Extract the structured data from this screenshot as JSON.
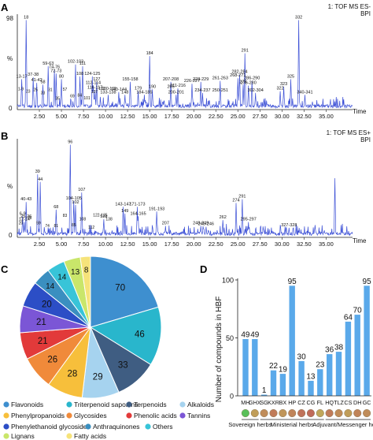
{
  "panel_letters": [
    "A",
    "B",
    "C",
    "D"
  ],
  "chart_data": [
    {
      "type": "line",
      "panel": "A",
      "label_right": [
        "1: TOF MS ES-",
        "BPI"
      ],
      "ylabel": "%",
      "xlabel": "Time",
      "yticks": [
        "0",
        "98"
      ],
      "xticks": [
        2.5,
        5.0,
        7.5,
        10.0,
        12.5,
        15.0,
        17.5,
        20.0,
        22.5,
        25.0,
        27.5,
        30.0,
        32.5,
        35.0
      ],
      "xlim": [
        0,
        38
      ],
      "ylim": [
        0,
        100
      ],
      "peaks": [
        {
          "t": 1.0,
          "h": 97,
          "label": "18"
        },
        {
          "t": 0.5,
          "h": 33,
          "label": "13-17"
        },
        {
          "t": 1.8,
          "h": 35,
          "label": "37-38"
        },
        {
          "t": 2.2,
          "h": 29,
          "label": "41-42"
        },
        {
          "t": 2.9,
          "h": 27,
          "label": "58"
        },
        {
          "t": 3.5,
          "h": 47,
          "label": "59-63"
        },
        {
          "t": 4.2,
          "h": 43,
          "label": "74-76"
        },
        {
          "t": 4.4,
          "h": 39,
          "label": "72-73"
        },
        {
          "t": 5.0,
          "h": 33,
          "label": "80"
        },
        {
          "t": 6.6,
          "h": 49,
          "label": "102-103"
        },
        {
          "t": 7.4,
          "h": 47,
          "label": "111"
        },
        {
          "t": 7.1,
          "h": 36,
          "label": "108"
        },
        {
          "t": 8.5,
          "h": 36,
          "label": "124-125"
        },
        {
          "t": 9.0,
          "h": 30,
          "label": "127"
        },
        {
          "t": 8.6,
          "h": 26,
          "label": "112-114"
        },
        {
          "t": 8.8,
          "h": 21,
          "label": "116-117"
        },
        {
          "t": 10.3,
          "h": 16,
          "label": "133-138"
        },
        {
          "t": 11.5,
          "h": 19,
          "label": "140-144"
        },
        {
          "t": 12.2,
          "h": 16,
          "label": "148"
        },
        {
          "t": 12.8,
          "h": 30,
          "label": "155-158"
        },
        {
          "t": 13.7,
          "h": 20,
          "label": "179"
        },
        {
          "t": 14.4,
          "h": 16,
          "label": "184-185"
        },
        {
          "t": 15.0,
          "h": 58,
          "label": "184"
        },
        {
          "t": 15.3,
          "h": 22,
          "label": "190"
        },
        {
          "t": 17.4,
          "h": 30,
          "label": "207-208"
        },
        {
          "t": 17.4,
          "h": 22,
          "label": "205"
        },
        {
          "t": 18.2,
          "h": 23,
          "label": "211-216"
        },
        {
          "t": 18.0,
          "h": 16,
          "label": "200-201"
        },
        {
          "t": 19.8,
          "h": 28,
          "label": "226-227"
        },
        {
          "t": 20.8,
          "h": 30,
          "label": "228-229"
        },
        {
          "t": 21.0,
          "h": 18,
          "label": "234-237"
        },
        {
          "t": 23.0,
          "h": 31,
          "label": "261-263"
        },
        {
          "t": 23.0,
          "h": 18,
          "label": "250-251"
        },
        {
          "t": 25.2,
          "h": 38,
          "label": "282-284"
        },
        {
          "t": 25.8,
          "h": 61,
          "label": "291"
        },
        {
          "t": 25.0,
          "h": 34,
          "label": "268-271"
        },
        {
          "t": 25.6,
          "h": 27,
          "label": "275"
        },
        {
          "t": 26.2,
          "h": 26,
          "label": "276-280"
        },
        {
          "t": 26.6,
          "h": 31,
          "label": "286-290"
        },
        {
          "t": 27.0,
          "h": 18,
          "label": "302-304"
        },
        {
          "t": 29.8,
          "h": 20,
          "label": "322"
        },
        {
          "t": 30.2,
          "h": 25,
          "label": "323"
        },
        {
          "t": 31.0,
          "h": 33,
          "label": "325"
        },
        {
          "t": 31.9,
          "h": 97,
          "label": "332"
        },
        {
          "t": 32.6,
          "h": 16,
          "label": "340-341"
        }
      ],
      "left_labels": [
        "1-9",
        "23",
        "25",
        "33",
        "31",
        "35",
        "57",
        "69",
        "84",
        "101",
        "107",
        "119",
        "130-132"
      ]
    },
    {
      "type": "line",
      "panel": "B",
      "label_right": [
        "1: TOF MS ES+",
        "BPI"
      ],
      "ylabel": "%",
      "xlabel": "Time",
      "yticks": [
        "0"
      ],
      "xticks": [
        2.5,
        5.0,
        7.5,
        10.0,
        12.5,
        15.0,
        17.5,
        20.0,
        22.5,
        25.0,
        27.5,
        30.0,
        32.5,
        35.0
      ],
      "xlim": [
        0,
        38
      ],
      "ylim": [
        0,
        100
      ],
      "peaks": [
        {
          "t": 2.3,
          "h": 66,
          "label": "39"
        },
        {
          "t": 2.6,
          "h": 58,
          "label": "44"
        },
        {
          "t": 1.0,
          "h": 37,
          "label": "40-43"
        },
        {
          "t": 0.6,
          "h": 22,
          "label": "6-9"
        },
        {
          "t": 1.0,
          "h": 19,
          "label": "25-26"
        },
        {
          "t": 0.8,
          "h": 16,
          "label": "12-14"
        },
        {
          "t": 4.4,
          "h": 29,
          "label": "68"
        },
        {
          "t": 6.0,
          "h": 97,
          "label": "96"
        },
        {
          "t": 6.4,
          "h": 38,
          "label": "104-105"
        },
        {
          "t": 6.6,
          "h": 34,
          "label": "102"
        },
        {
          "t": 7.3,
          "h": 47,
          "label": "107"
        },
        {
          "t": 9.8,
          "h": 19,
          "label": "128"
        },
        {
          "t": 12.0,
          "h": 32,
          "label": "143-147"
        },
        {
          "t": 12.2,
          "h": 25,
          "label": "149"
        },
        {
          "t": 13.6,
          "h": 32,
          "label": "171-173"
        },
        {
          "t": 13.7,
          "h": 22,
          "label": "164-165"
        },
        {
          "t": 15.8,
          "h": 27,
          "label": "191-193"
        },
        {
          "t": 16.8,
          "h": 12,
          "label": "207"
        },
        {
          "t": 20.8,
          "h": 12,
          "label": "248-249"
        },
        {
          "t": 21.4,
          "h": 11,
          "label": "245-246"
        },
        {
          "t": 23.3,
          "h": 18,
          "label": "262"
        },
        {
          "t": 24.8,
          "h": 36,
          "label": "274"
        },
        {
          "t": 25.5,
          "h": 40,
          "label": "291"
        },
        {
          "t": 26.2,
          "h": 16,
          "label": "295-297"
        },
        {
          "t": 30.8,
          "h": 10,
          "label": "327-328"
        },
        {
          "t": 36.0,
          "h": 62,
          "label": ""
        }
      ],
      "left_labels": [
        "20",
        "28",
        "59",
        "74",
        "81",
        "83",
        "85",
        "108",
        "112",
        "122-125",
        "138"
      ]
    },
    {
      "type": "pie",
      "panel": "C",
      "slices": [
        {
          "name": "Flavonoids",
          "value": 70,
          "color": "#3e8fcf"
        },
        {
          "name": "Triterpenoid saponins",
          "value": 46,
          "color": "#29b6cc"
        },
        {
          "name": "Terpenoids",
          "value": 33,
          "color": "#3f5d82"
        },
        {
          "name": "Alkaloids",
          "value": 29,
          "color": "#a6d3ef"
        },
        {
          "name": "Phenylpropanoids",
          "value": 28,
          "color": "#f7bf3b"
        },
        {
          "name": "Glycosides",
          "value": 26,
          "color": "#f08a3a"
        },
        {
          "name": "Phenolic acids",
          "value": 21,
          "color": "#e23a3a"
        },
        {
          "name": "Tannins",
          "value": 21,
          "color": "#7b56d6"
        },
        {
          "name": "Phenylethanoid glycosides",
          "value": 20,
          "color": "#2c4ec6"
        },
        {
          "name": "Anthraquinones",
          "value": 14,
          "color": "#3a8fc0"
        },
        {
          "name": "Others",
          "value": 14,
          "color": "#38c4d8"
        },
        {
          "name": "Lignans",
          "value": 13,
          "color": "#c9e66a"
        },
        {
          "name": "Fatty acids",
          "value": 8,
          "color": "#f6e37a"
        }
      ]
    },
    {
      "type": "bar",
      "panel": "D",
      "ylabel": "Number of compounds in HBF",
      "ylim": [
        0,
        100
      ],
      "yticks": [
        0,
        50,
        100
      ],
      "categories": [
        "MH",
        "GHX",
        "SG",
        "KXR",
        "BX",
        "HP",
        "CZ",
        "CG",
        "FL",
        "HQ",
        "TLZ",
        "CS",
        "DH",
        "GC"
      ],
      "values": [
        49,
        49,
        1,
        22,
        19,
        95,
        30,
        13,
        23,
        36,
        38,
        64,
        70,
        95
      ],
      "bar_color": "#5aa9ea",
      "groups": [
        {
          "label": "Sovereign herbs",
          "from": 0,
          "to": 1
        },
        {
          "label": "Ministerial herbs",
          "from": 2,
          "to": 8
        },
        {
          "label": "Adjuvant/Messenger herbs",
          "from": 9,
          "to": 13
        }
      ]
    }
  ]
}
